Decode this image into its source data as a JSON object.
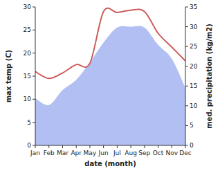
{
  "chart_data": {
    "type": "line",
    "x_label": "date (month)",
    "y_label": "max temp (C)",
    "y2_label": "med. precipitation (kg/m2)",
    "categories": [
      "Jan",
      "Feb",
      "Mar",
      "Apr",
      "May",
      "Jun",
      "Jul",
      "Aug",
      "Sep",
      "Oct",
      "Nov",
      "Dec"
    ],
    "ylim": [
      0,
      30
    ],
    "yticks": [
      0,
      5,
      10,
      15,
      20,
      25,
      30
    ],
    "y2lim": [
      0,
      35
    ],
    "y2ticks": [
      0,
      5,
      10,
      15,
      20,
      25,
      30,
      35
    ],
    "series": [
      {
        "name": "max temp (C)",
        "type": "line",
        "color": "#cd5c5c",
        "values": [
          16,
          14.5,
          15.7,
          17.5,
          17.8,
          29,
          28.8,
          29.3,
          29,
          24.3,
          21.3,
          18.3
        ]
      },
      {
        "name": "med. precipitation (kg/m2)",
        "type": "area",
        "axis": "y2",
        "color": "#b2bff2",
        "values": [
          11.9,
          10.2,
          14,
          16.6,
          21,
          26,
          29.8,
          30,
          29.8,
          25.4,
          21.9,
          14.5
        ]
      }
    ]
  }
}
